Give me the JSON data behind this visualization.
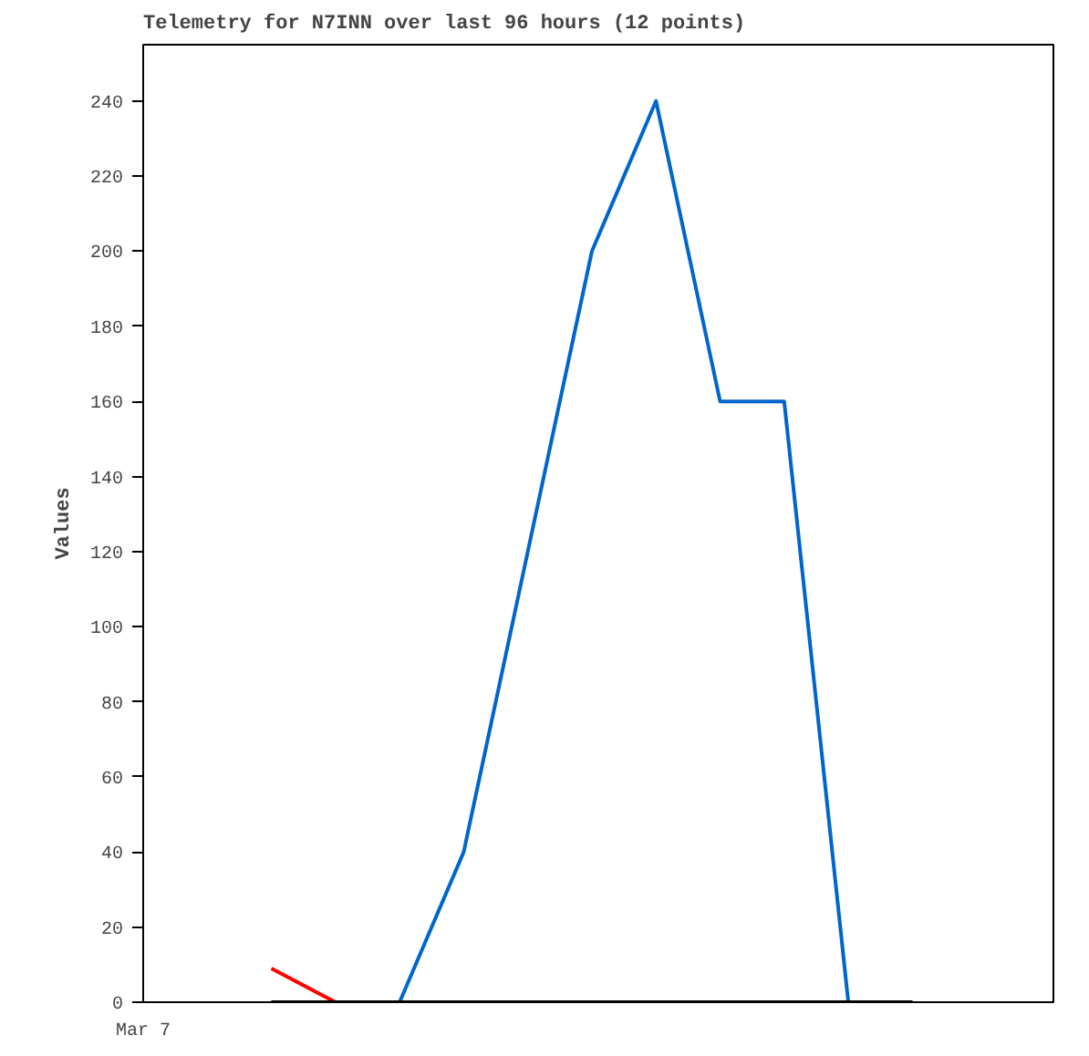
{
  "chart_data": {
    "type": "line",
    "title": "Telemetry for N7INN over last 96 hours (12 points)",
    "ylabel": "Values",
    "annotations": [
      "Mar 7"
    ],
    "categories": [
      null,
      null,
      null,
      null,
      null,
      null,
      null,
      null,
      null,
      null,
      null
    ],
    "ylim": [
      0,
      255
    ],
    "yticks": [
      0,
      20,
      40,
      60,
      80,
      100,
      120,
      140,
      160,
      180,
      200,
      220,
      240
    ],
    "grid": false,
    "marker": "none",
    "line_style": "solid",
    "series": [
      {
        "color": "#ff0000",
        "values": [
          9,
          0,
          null,
          null,
          null,
          null,
          null,
          null,
          null,
          null,
          null
        ]
      },
      {
        "color": "#0066cc",
        "values": [
          0,
          0,
          0,
          40,
          120,
          200,
          240,
          160,
          160,
          0,
          0
        ]
      },
      {
        "color": "#000000",
        "values": [
          0,
          0,
          0,
          0,
          0,
          0,
          0,
          0,
          0,
          0,
          0
        ]
      }
    ]
  }
}
